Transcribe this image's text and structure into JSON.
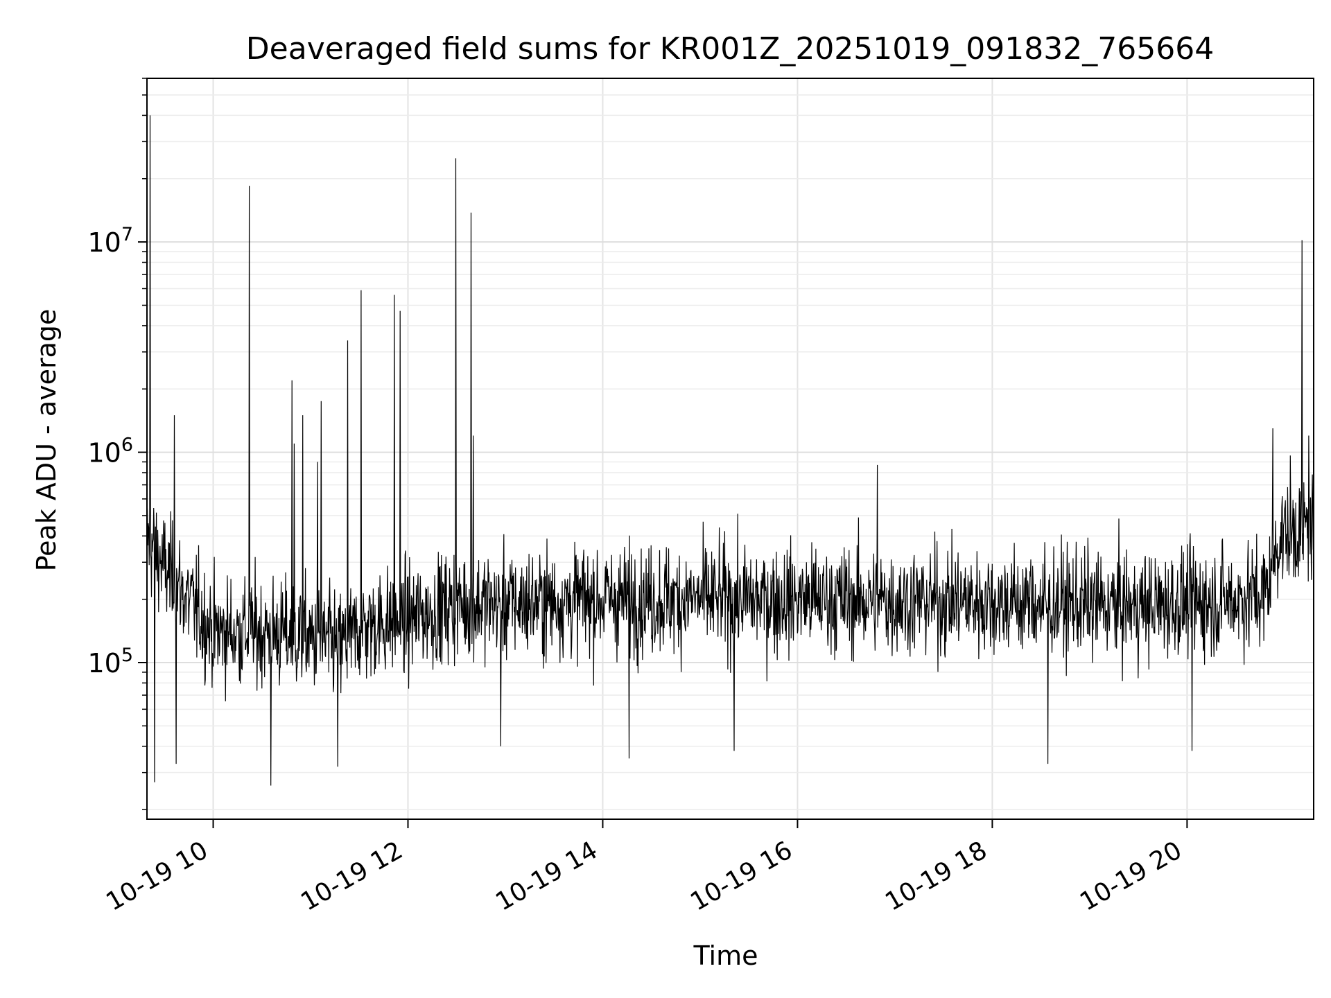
{
  "chart_data": {
    "type": "line",
    "title": "Deaveraged field sums for KR001Z_20251019_091832_765664",
    "xlabel": "Time",
    "ylabel": "Peak ADU - average",
    "x_unit": "hours (2025-10-19)",
    "xlim": [
      9.32,
      21.3
    ],
    "y_scale": "log",
    "ylim": [
      18000,
      60000000
    ],
    "grid": true,
    "line_color": "#000000",
    "x_ticks": [
      {
        "value": 10,
        "label": "10-19 10"
      },
      {
        "value": 12,
        "label": "10-19 12"
      },
      {
        "value": 14,
        "label": "10-19 14"
      },
      {
        "value": 16,
        "label": "10-19 16"
      },
      {
        "value": 18,
        "label": "10-19 18"
      },
      {
        "value": 20,
        "label": "10-19 20"
      }
    ],
    "y_ticks": [
      {
        "value": 100000,
        "base": "10",
        "exp": "5"
      },
      {
        "value": 1000000,
        "base": "10",
        "exp": "6"
      },
      {
        "value": 10000000,
        "base": "10",
        "exp": "7"
      }
    ],
    "baseline": [
      [
        9.32,
        400000
      ],
      [
        9.5,
        280000
      ],
      [
        9.7,
        210000
      ],
      [
        10.0,
        140000
      ],
      [
        10.5,
        140000
      ],
      [
        11.0,
        130000
      ],
      [
        11.3,
        120000
      ],
      [
        11.6,
        150000
      ],
      [
        12.0,
        160000
      ],
      [
        12.5,
        190000
      ],
      [
        13.0,
        190000
      ],
      [
        14.0,
        200000
      ],
      [
        16.0,
        200000
      ],
      [
        18.0,
        195000
      ],
      [
        19.5,
        185000
      ],
      [
        20.5,
        200000
      ],
      [
        20.8,
        210000
      ],
      [
        20.95,
        400000
      ],
      [
        21.3,
        450000
      ]
    ],
    "spikes": [
      {
        "x": 9.35,
        "y": 40000000
      },
      {
        "x": 9.6,
        "y": 1500000
      },
      {
        "x": 10.37,
        "y": 18500000
      },
      {
        "x": 10.81,
        "y": 2200000
      },
      {
        "x": 10.83,
        "y": 1100000
      },
      {
        "x": 10.92,
        "y": 1500000
      },
      {
        "x": 11.07,
        "y": 900000
      },
      {
        "x": 11.11,
        "y": 1750000
      },
      {
        "x": 11.38,
        "y": 3400000
      },
      {
        "x": 11.52,
        "y": 5900000
      },
      {
        "x": 11.86,
        "y": 5600000
      },
      {
        "x": 11.92,
        "y": 4700000
      },
      {
        "x": 12.49,
        "y": 25000000
      },
      {
        "x": 12.65,
        "y": 13800000
      },
      {
        "x": 12.67,
        "y": 1200000
      },
      {
        "x": 16.82,
        "y": 870000
      },
      {
        "x": 20.88,
        "y": 1300000
      },
      {
        "x": 21.18,
        "y": 10200000
      },
      {
        "x": 21.25,
        "y": 1200000
      }
    ],
    "dips": [
      {
        "x": 9.4,
        "y": 27000
      },
      {
        "x": 9.62,
        "y": 33000
      },
      {
        "x": 10.59,
        "y": 26000
      },
      {
        "x": 11.28,
        "y": 32000
      },
      {
        "x": 12.95,
        "y": 40000
      },
      {
        "x": 14.27,
        "y": 35000
      },
      {
        "x": 15.35,
        "y": 38000
      },
      {
        "x": 18.57,
        "y": 33000
      },
      {
        "x": 20.05,
        "y": 38000
      }
    ]
  }
}
